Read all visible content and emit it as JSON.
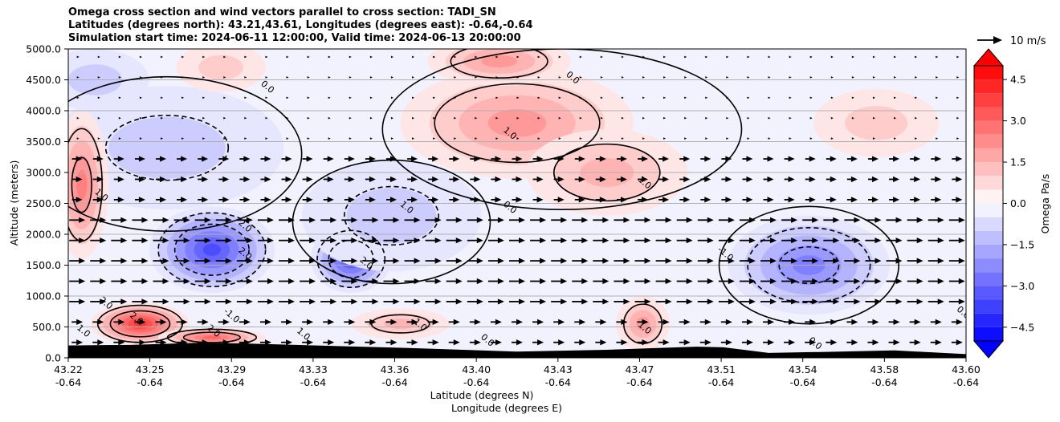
{
  "chart_data": {
    "type": "heatmap",
    "title_lines": [
      "Omega cross section and wind vectors parallel to cross section: TADI_SN",
      "Latitudes (degrees north): 43.21,43.61, Longitudes (degrees east): -0.64,-0.64",
      "Simulation start time: 2024-06-11 12:00:00, Valid time: 2024-06-13 20:00:00"
    ],
    "ylabel": "Altitude (meters)",
    "xlabel_lines": [
      "Latitude (degrees N)",
      "Longitude (degrees E)"
    ],
    "ylim": [
      0,
      5000
    ],
    "y_ticks": [
      "0.0",
      "500.0",
      "1000.0",
      "1500.0",
      "2000.0",
      "2500.0",
      "3000.0",
      "3500.0",
      "4000.0",
      "4500.0",
      "5000.0"
    ],
    "x_ticks_lat": [
      "43.22",
      "43.25",
      "43.29",
      "43.33",
      "43.36",
      "43.40",
      "43.43",
      "43.47",
      "43.51",
      "43.54",
      "43.58",
      "43.60"
    ],
    "x_ticks_lon": [
      "-0.64",
      "-0.64",
      "-0.64",
      "-0.64",
      "-0.64",
      "-0.64",
      "-0.64",
      "-0.64",
      "-0.64",
      "-0.64",
      "-0.64",
      "-0.64"
    ],
    "grid": "horizontal",
    "colorbar": {
      "label": "Omega Pa/s",
      "range": [
        -5,
        5
      ],
      "ticks": [
        "4.5",
        "3.0",
        "1.5",
        "0.0",
        "−1.5",
        "−3.0",
        "−4.5"
      ],
      "cmap": "bwr",
      "low_color": "#0000ff",
      "high_color": "#ff0000"
    },
    "vector_key": {
      "label": "10 m/s"
    },
    "contour_labels": [
      {
        "text": "0.0",
        "x": 0.22,
        "y": 4350
      },
      {
        "text": "0.0",
        "x": 0.56,
        "y": 4500
      },
      {
        "text": "1.0",
        "x": 0.49,
        "y": 3600
      },
      {
        "text": "1.0",
        "x": 0.64,
        "y": 2800
      },
      {
        "text": "0.0",
        "x": 0.49,
        "y": 2400
      },
      {
        "text": "1.0",
        "x": 0.375,
        "y": 2400
      },
      {
        "text": "1.0",
        "x": 0.035,
        "y": 2600
      },
      {
        "text": "2.0",
        "x": 0.195,
        "y": 2100
      },
      {
        "text": "2.0",
        "x": 0.195,
        "y": 1650
      },
      {
        "text": "2.0",
        "x": 0.33,
        "y": 1500
      },
      {
        "text": "-1.0",
        "x": 0.73,
        "y": 1650
      },
      {
        "text": "-1.0",
        "x": 0.18,
        "y": 650
      },
      {
        "text": "2.0",
        "x": 0.04,
        "y": 850
      },
      {
        "text": "2.0",
        "x": 0.074,
        "y": 600
      },
      {
        "text": "2.0",
        "x": 0.16,
        "y": 400
      },
      {
        "text": "1.0",
        "x": 0.26,
        "y": 350
      },
      {
        "text": "1.0",
        "x": 0.39,
        "y": 500
      },
      {
        "text": "1.0",
        "x": 0.64,
        "y": 450
      },
      {
        "text": "0.0",
        "x": 0.465,
        "y": 250
      },
      {
        "text": "0.0",
        "x": 0.83,
        "y": 200
      },
      {
        "text": "1.0",
        "x": 0.015,
        "y": 400
      },
      {
        "text": "0.0",
        "x": 0.995,
        "y": 700
      }
    ],
    "omega_features": [
      {
        "sign": "neg",
        "cx": 0.16,
        "cy": 1750,
        "rx": 0.07,
        "ry": 700,
        "level": 3.5
      },
      {
        "sign": "neg",
        "cx": 0.315,
        "cy": 1600,
        "rx": 0.045,
        "ry": 550,
        "level": 3.2
      },
      {
        "sign": "neg",
        "cx": 0.825,
        "cy": 1500,
        "rx": 0.09,
        "ry": 800,
        "level": 2.2
      },
      {
        "sign": "neg",
        "cx": 0.11,
        "cy": 3400,
        "rx": 0.13,
        "ry": 1000,
        "level": 1.0
      },
      {
        "sign": "neg",
        "cx": 0.36,
        "cy": 2300,
        "rx": 0.1,
        "ry": 900,
        "level": 1.0
      },
      {
        "sign": "neg",
        "cx": 0.03,
        "cy": 4500,
        "rx": 0.06,
        "ry": 500,
        "level": 0.6
      },
      {
        "sign": "pos",
        "cx": 0.015,
        "cy": 2800,
        "rx": 0.03,
        "ry": 1200,
        "level": 2.2
      },
      {
        "sign": "pos",
        "cx": 0.08,
        "cy": 550,
        "rx": 0.055,
        "ry": 350,
        "level": 3.6
      },
      {
        "sign": "pos",
        "cx": 0.16,
        "cy": 330,
        "rx": 0.06,
        "ry": 160,
        "level": 3.0
      },
      {
        "sign": "pos",
        "cx": 0.5,
        "cy": 3800,
        "rx": 0.13,
        "ry": 900,
        "level": 1.8
      },
      {
        "sign": "pos",
        "cx": 0.6,
        "cy": 3000,
        "rx": 0.09,
        "ry": 700,
        "level": 1.5
      },
      {
        "sign": "pos",
        "cx": 0.48,
        "cy": 4800,
        "rx": 0.08,
        "ry": 400,
        "level": 1.6
      },
      {
        "sign": "pos",
        "cx": 0.64,
        "cy": 550,
        "rx": 0.03,
        "ry": 450,
        "level": 1.8
      },
      {
        "sign": "pos",
        "cx": 0.37,
        "cy": 550,
        "rx": 0.055,
        "ry": 250,
        "level": 1.2
      },
      {
        "sign": "pos",
        "cx": 0.9,
        "cy": 3800,
        "rx": 0.07,
        "ry": 550,
        "level": 0.9
      },
      {
        "sign": "pos",
        "cx": 0.17,
        "cy": 4700,
        "rx": 0.05,
        "ry": 400,
        "level": 0.8
      }
    ],
    "terrain_altitude_m": [
      {
        "x": 0.0,
        "y": 200
      },
      {
        "x": 0.07,
        "y": 210
      },
      {
        "x": 0.14,
        "y": 240
      },
      {
        "x": 0.2,
        "y": 230
      },
      {
        "x": 0.3,
        "y": 190
      },
      {
        "x": 0.4,
        "y": 150
      },
      {
        "x": 0.5,
        "y": 100
      },
      {
        "x": 0.6,
        "y": 130
      },
      {
        "x": 0.66,
        "y": 160
      },
      {
        "x": 0.7,
        "y": 180
      },
      {
        "x": 0.73,
        "y": 170
      },
      {
        "x": 0.78,
        "y": 80
      },
      {
        "x": 0.86,
        "y": 100
      },
      {
        "x": 0.92,
        "y": 120
      },
      {
        "x": 1.0,
        "y": 60
      }
    ]
  }
}
